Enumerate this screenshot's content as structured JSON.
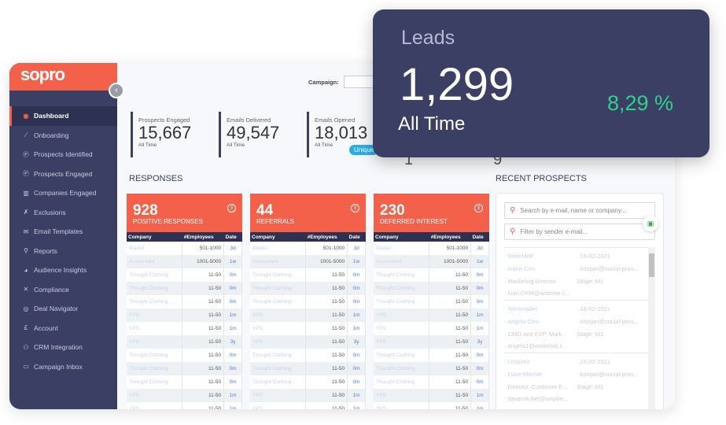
{
  "brand": {
    "logo": "sopro",
    "accent": "#f4614a",
    "navy": "#3b3f63"
  },
  "sidebar": {
    "items": [
      {
        "label": "Dashboard",
        "icon": "dashboard-icon",
        "active": true
      },
      {
        "label": "Onboarding",
        "icon": "chart-line-icon"
      },
      {
        "label": "Prospects Identified",
        "icon": "p-circle-icon"
      },
      {
        "label": "Prospects Engaged",
        "icon": "p-circle-icon"
      },
      {
        "label": "Companies Engaged",
        "icon": "building-icon"
      },
      {
        "label": "Exclusions",
        "icon": "user-x-icon"
      },
      {
        "label": "Email Templates",
        "icon": "envelope-icon"
      },
      {
        "label": "Reports",
        "icon": "reports-icon"
      },
      {
        "label": "Audience Insights",
        "icon": "pie-chart-icon"
      },
      {
        "label": "Compliance",
        "icon": "compliance-icon"
      },
      {
        "label": "Deal Navigator",
        "icon": "compass-icon"
      },
      {
        "label": "Account",
        "icon": "pound-icon"
      },
      {
        "label": "CRM Integration",
        "icon": "sitemap-icon"
      },
      {
        "label": "Campaign Inbox",
        "icon": "inbox-icon"
      }
    ]
  },
  "campaign": {
    "label": "Campaign:",
    "value": ""
  },
  "stats": [
    {
      "label": "Prospects Engaged",
      "value": "15,667",
      "sub": "All Time"
    },
    {
      "label": "Emails Delivered",
      "value": "49,547",
      "sub": "All Time"
    },
    {
      "label": "Emails Opened",
      "value": "18,013",
      "sub": "All Time",
      "badge": "Unique"
    }
  ],
  "partial_values": [
    "1",
    "9"
  ],
  "responses_title": "RESPONSES",
  "recent_title": "RECENT PROSPECTS",
  "columns": [
    "Company",
    "#Employees",
    "Date"
  ],
  "tables": [
    {
      "count": "928",
      "title": "POSITIVE RESPONSES"
    },
    {
      "count": "44",
      "title": "REFERRALS"
    },
    {
      "count": "230",
      "title": "DEFERRED INTEREST"
    }
  ],
  "rows": [
    [
      "Bladez",
      "501-1000",
      "3d"
    ],
    [
      "Accountant",
      "1001-5000",
      "1w"
    ],
    [
      "Thought Clothing",
      "11-50",
      "0m"
    ],
    [
      "Thought Clothing",
      "11-50",
      "0m"
    ],
    [
      "Thought Clothing",
      "11-50",
      "0m"
    ],
    [
      "YPS",
      "11-50",
      "1m"
    ],
    [
      "YPS",
      "11-50",
      "1m"
    ],
    [
      "YPS",
      "11-50",
      "3y"
    ],
    [
      "Thought Clothing",
      "11-50",
      "0m"
    ],
    [
      "Thought Clothing",
      "11-50",
      "0m"
    ],
    [
      "Thought Clothing",
      "11-50",
      "0m"
    ],
    [
      "YPS",
      "11-50",
      "1m"
    ],
    [
      "YPS",
      "11-50",
      "1m"
    ]
  ],
  "search": {
    "placeholder1": "Search by e-mail, name or company...",
    "placeholder2": "Filter by sender e-mail..."
  },
  "prospects": [
    {
      "company": "WriteMeP",
      "date": "16-02-2021",
      "name": "Ivane Crm",
      "sender": "kristjan@social-pros...",
      "title": "Marketing Director",
      "stage": "Stage: M1",
      "email": "Ivan.CRM@writeme.c..."
    },
    {
      "company": "Workmailer",
      "date": "16-02-2021",
      "name": "Angela One",
      "sender": "kristjan@social-pros...",
      "title": "CMO and EVP, Mark...",
      "stage": "Stage: M1",
      "email": "angela1@workmail.c..."
    },
    {
      "company": "Umpirez",
      "date": "15-02-2021",
      "name": "Dave Mitchel",
      "sender": "kristjan@social-pros...",
      "title": "Director, Customer E...",
      "stage": "Stage: M1",
      "email": "davemitchel@umpire..."
    }
  ],
  "leads": {
    "title": "Leads",
    "value": "1,299",
    "sub": "All Time",
    "percent": "8,29 %",
    "percent_color": "#2fd18b"
  }
}
